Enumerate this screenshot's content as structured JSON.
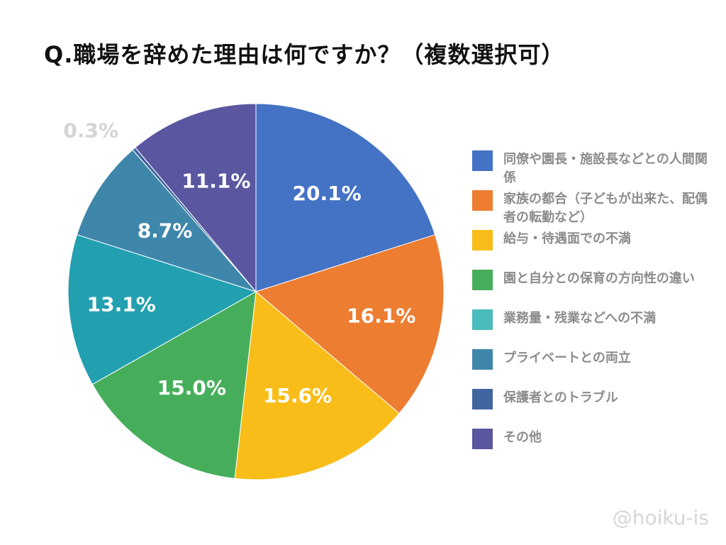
{
  "title": "Q.職場を辞めた理由は何ですか？（複数選択可）",
  "watermark": "@hoiku-is",
  "chart_data": {
    "type": "pie",
    "title": "Q.職場を辞めた理由は何ですか？（複数選択可）",
    "legend_position": "right",
    "series": [
      {
        "name": "同僚や園長・施設長などとの人間関係",
        "value": 20.1,
        "label": "20.1%",
        "color": "#4472c4"
      },
      {
        "name": "家族の都合（子どもが出来た、配偶者の転勤など）",
        "value": 16.1,
        "label": "16.1%",
        "color": "#ed7d31"
      },
      {
        "name": "給与・待遇面での不満",
        "value": 15.6,
        "label": "15.6%",
        "color": "#f9bd1a"
      },
      {
        "name": "園と自分との保育の方向性の違い",
        "value": 15.0,
        "label": "15.0%",
        "color": "#46ae5b"
      },
      {
        "name": "業務量・残業などへの不満",
        "value": 13.1,
        "label": "13.1%",
        "color": "#22a0b0"
      },
      {
        "name": "プライベートとの両立",
        "value": 8.7,
        "label": "8.7%",
        "color": "#3f87aa"
      },
      {
        "name": "保護者とのトラブル",
        "value": 0.3,
        "label": "0.3%",
        "color": "#41659f"
      },
      {
        "name": "その他",
        "value": 11.1,
        "label": "11.1%",
        "color": "#5a57a0"
      }
    ],
    "legend_colors": [
      "#4472c4",
      "#ed7d31",
      "#f9bd1a",
      "#46ae5b",
      "#4bbcbc",
      "#3f87aa",
      "#41659f",
      "#5a57a0"
    ],
    "data_label_color": "#ffffff",
    "outside_label_color": "#d4d4d4"
  }
}
